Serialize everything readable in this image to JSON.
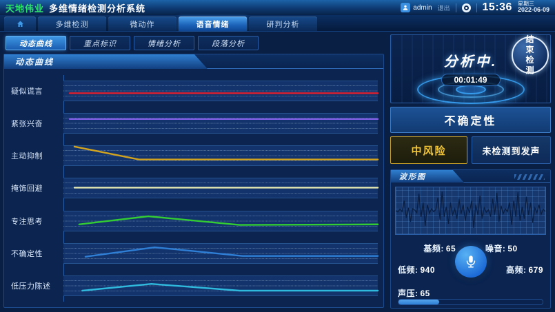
{
  "header": {
    "brand": "天地伟业",
    "title": "多维情绪检测分析系统",
    "user": "admin",
    "logout_label": "退出",
    "time": "15:36",
    "weekday": "星期三",
    "date": "2022-06-09"
  },
  "nav": {
    "tabs": [
      {
        "name": "multi-detect",
        "label": "多维检测",
        "active": false
      },
      {
        "name": "micro-action",
        "label": "微动作",
        "active": false
      },
      {
        "name": "voice-emotion",
        "label": "语音情绪",
        "active": true
      },
      {
        "name": "judge-analysis",
        "label": "研判分析",
        "active": false
      }
    ]
  },
  "subtabs": [
    {
      "name": "dynamic-curve",
      "label": "动态曲线",
      "active": true
    },
    {
      "name": "key-marks",
      "label": "重点标识",
      "active": false
    },
    {
      "name": "emotion-analysis",
      "label": "情绪分析",
      "active": false
    },
    {
      "name": "paragraph-analysis",
      "label": "段落分析",
      "active": false
    }
  ],
  "left_panel": {
    "title": "动态曲线"
  },
  "right_panel": {
    "analyzing": {
      "status": "分析中.",
      "timer": "00:01:49",
      "end_button": "结束检测"
    },
    "uncertainty_banner": "不确定性",
    "risk_level": "中风险",
    "voice_status": "未检测到发声",
    "waveform_title": "波形图",
    "stats": {
      "base_freq_label": "基频:",
      "base_freq_value": "65",
      "noise_label": "噪音:",
      "noise_value": "50",
      "low_freq_label": "低频:",
      "low_freq_value": "940",
      "high_freq_label": "高频:",
      "high_freq_value": "679",
      "pressure_label": "声压:",
      "pressure_value": "65",
      "pressure_percent": 28
    }
  },
  "chart_data": [
    {
      "type": "line",
      "title": "动态曲线",
      "xlabel": "",
      "ylabel": "",
      "grid": "3 dashed horizontal gridlines per series band",
      "note": "points are [time_fraction 0-1, intensity 0-1 within band (1=top)]",
      "series": [
        {
          "name": "疑似谎言",
          "id": "suspected-lie",
          "color": "#e0202e",
          "points": [
            [
              0.02,
              0.38
            ],
            [
              1,
              0.38
            ]
          ]
        },
        {
          "name": "紧张兴奋",
          "id": "tension-excitement",
          "color": "#7c5ce0",
          "points": [
            [
              0.02,
              0.72
            ],
            [
              1,
              0.72
            ]
          ]
        },
        {
          "name": "主动抑制",
          "id": "active-suppression",
          "color": "#d2a31f",
          "points": [
            [
              0.035,
              0.97
            ],
            [
              0.24,
              0.3
            ],
            [
              1,
              0.3
            ]
          ]
        },
        {
          "name": "掩饰回避",
          "id": "concealment-avoidance",
          "color": "#e9ecb2",
          "points": [
            [
              0.035,
              0.52
            ],
            [
              1,
              0.52
            ]
          ]
        },
        {
          "name": "专注思考",
          "id": "focused-thinking",
          "color": "#33cc33",
          "points": [
            [
              0.05,
              0.33
            ],
            [
              0.27,
              0.75
            ],
            [
              0.56,
              0.3
            ],
            [
              1,
              0.33
            ]
          ]
        },
        {
          "name": "不确定性",
          "id": "uncertainty",
          "color": "#2f7fd6",
          "points": [
            [
              0.07,
              0.33
            ],
            [
              0.29,
              0.82
            ],
            [
              0.57,
              0.37
            ],
            [
              1,
              0.37
            ]
          ]
        },
        {
          "name": "低压力陈述",
          "id": "low-pressure-statement",
          "color": "#2fb9dc",
          "points": [
            [
              0.06,
              0.25
            ],
            [
              0.28,
              0.6
            ],
            [
              0.56,
              0.25
            ],
            [
              1,
              0.25
            ]
          ]
        }
      ]
    },
    {
      "type": "line",
      "title": "波形图",
      "note": "audio waveform amplitude, normalized -1..1",
      "values": [
        0,
        -0.06,
        0.08,
        -0.04,
        0.5,
        -0.35,
        0.15,
        -0.55,
        0.1,
        0.04,
        -0.1,
        0.85,
        -0.3,
        0.4,
        -0.75,
        0.3,
        -0.12,
        0.1,
        -0.05,
        0.06,
        0.65,
        -0.45,
        0.95,
        -0.3,
        0.2,
        -0.65,
        0.4,
        -0.2,
        0.1,
        -0.4,
        0.6,
        -0.15,
        0.3,
        -0.5,
        0.2,
        -0.1,
        0.5,
        -0.85,
        0.3,
        -0.2,
        0.75,
        -0.4,
        0.15,
        -0.08,
        0.05,
        -0.3,
        0.6,
        -0.2,
        0.9,
        -0.55,
        0.25,
        -0.15,
        0.1,
        -0.05,
        0.4,
        -0.7,
        0.5,
        -0.3,
        0.92,
        -0.5,
        0.2,
        -0.4,
        0.7,
        -0.2,
        0.4,
        -0.6,
        0.15,
        -0.1,
        0.3,
        -0.18,
        0.08,
        -0.04
      ]
    }
  ]
}
